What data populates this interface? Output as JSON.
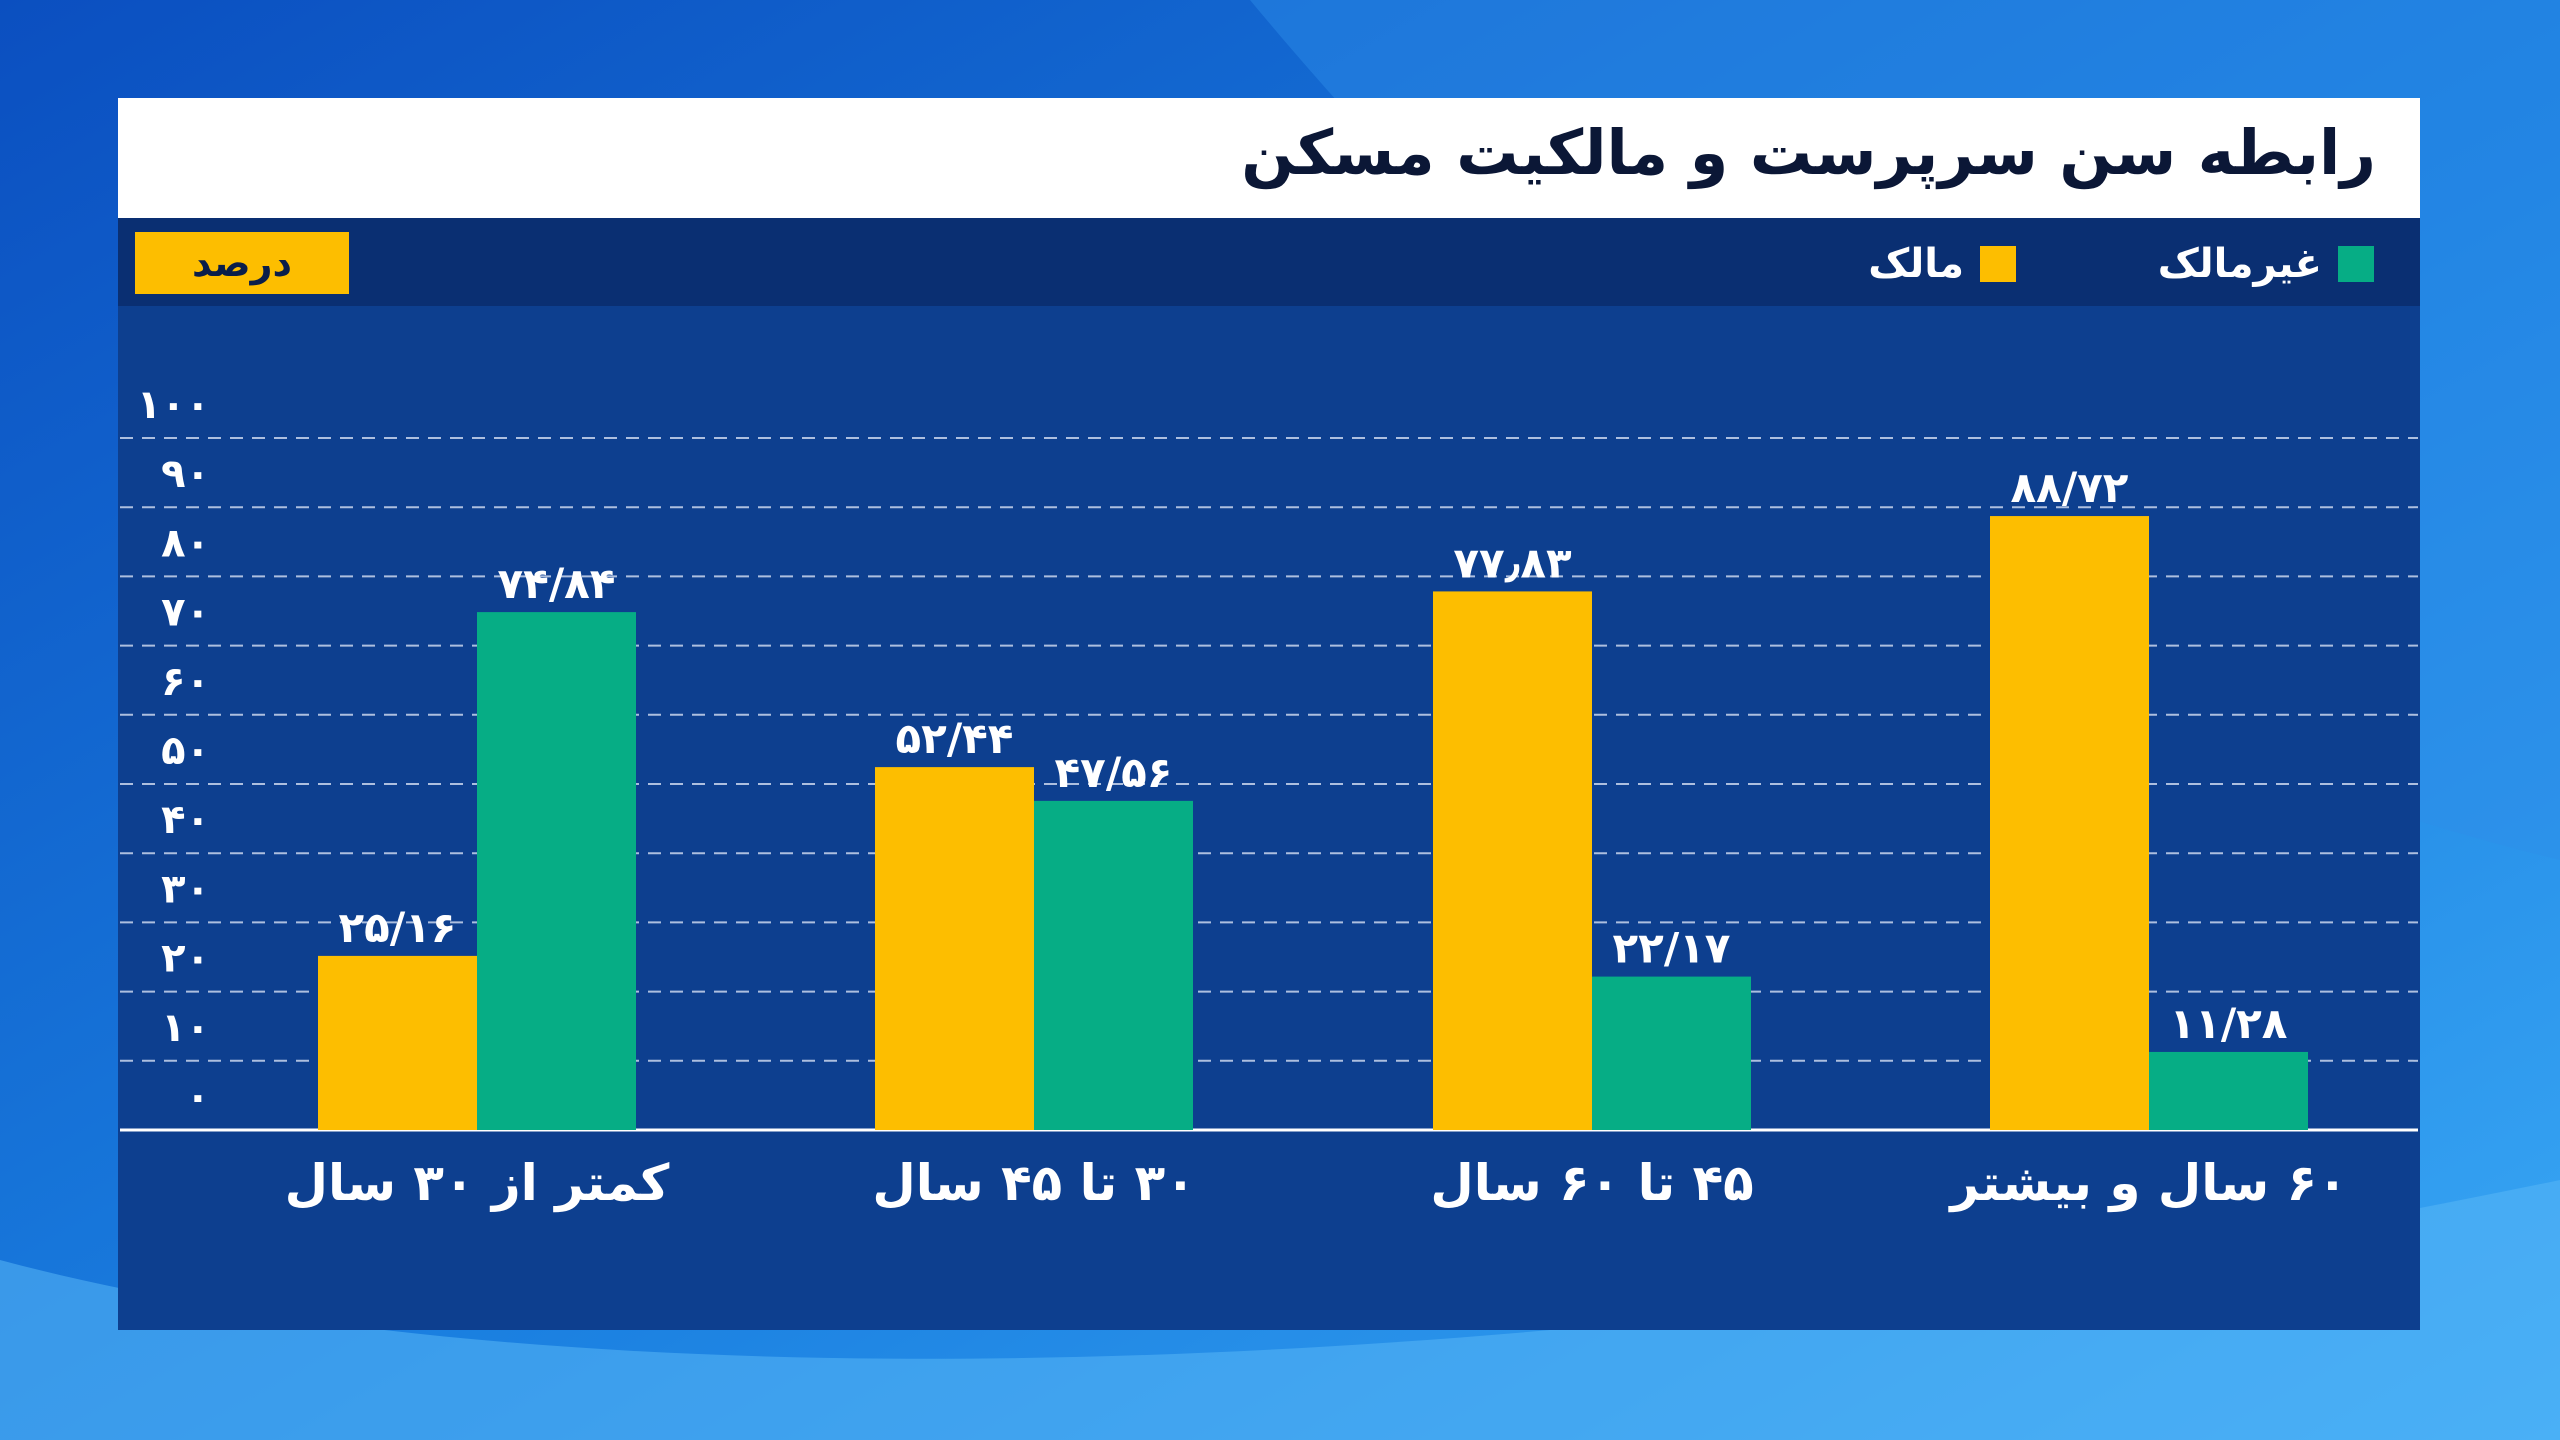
{
  "title": "رابطه سن سرپرست و مالکیت مسکن",
  "unit_label": "درصد",
  "colors": {
    "owner": "#fdbe00",
    "non_owner": "#06ad85",
    "panel": "#0d3f8f",
    "grid": "#c9d6ee"
  },
  "legend": [
    {
      "label": "غیرمالک",
      "color": "#06ad85"
    },
    {
      "label": "مالک",
      "color": "#fdbe00"
    }
  ],
  "chart_data": {
    "type": "bar",
    "categories": [
      "کمتر از ۳۰ سال",
      "۳۰ تا ۴۵ سال",
      "۴۵ تا ۶۰ سال",
      "۶۰ سال و بیشتر"
    ],
    "series": [
      {
        "name": "مالک",
        "values": [
          25.16,
          52.44,
          77.83,
          88.72
        ],
        "labels": [
          "۲۵/۱۶",
          "۵۲/۴۴",
          "۷۷٫۸۳",
          "۸۸/۷۲"
        ]
      },
      {
        "name": "غیرمالک",
        "values": [
          74.84,
          47.56,
          22.17,
          11.28
        ],
        "labels": [
          "۷۴/۸۴",
          "۴۷/۵۶",
          "۲۲/۱۷",
          "۱۱/۲۸"
        ]
      }
    ],
    "y_ticks": [
      "۰",
      "۱۰",
      "۲۰",
      "۳۰",
      "۴۰",
      "۵۰",
      "۶۰",
      "۷۰",
      "۸۰",
      "۹۰",
      "۱۰۰"
    ],
    "ylim": [
      0,
      100
    ],
    "grid": true,
    "legend_position": "top-right"
  }
}
